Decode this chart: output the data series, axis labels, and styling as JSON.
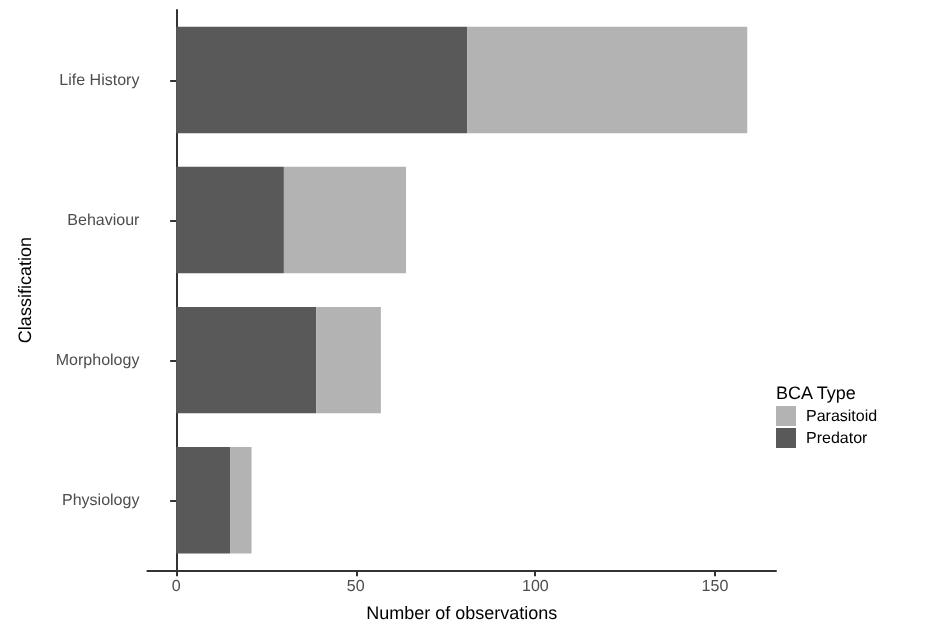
{
  "chart_data": {
    "type": "bar",
    "orientation": "horizontal",
    "stacked": true,
    "xlabel": "Number of observations",
    "ylabel": "Classification",
    "legend_title": "BCA Type",
    "categories": [
      "Life History",
      "Behaviour",
      "Morphology",
      "Physiology"
    ],
    "series": [
      {
        "name": "Predator",
        "color": "#595959",
        "values": [
          81,
          30,
          39,
          15
        ]
      },
      {
        "name": "Parasitoid",
        "color": "#b3b3b3",
        "values": [
          78,
          34,
          18,
          6
        ]
      }
    ],
    "xlim": [
      -8,
      167
    ],
    "xticks": [
      0,
      50,
      100,
      150
    ],
    "grid": false,
    "legend": "right"
  }
}
